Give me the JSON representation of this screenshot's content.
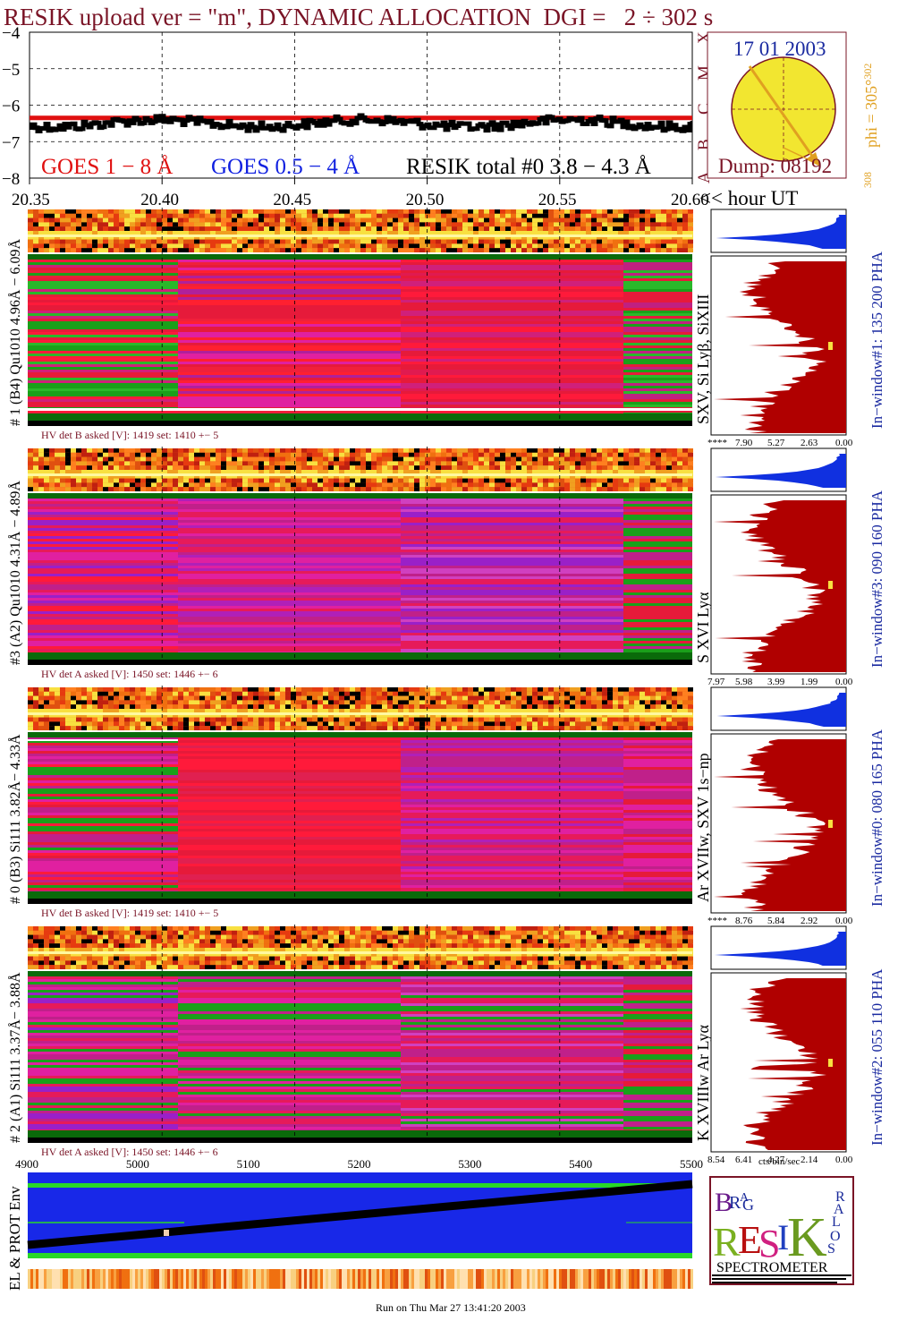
{
  "title": "RESIK upload ver = \"m\", DYNAMIC ALLOCATION  DGI =   2 ÷ 302 s",
  "goes": {
    "y_ticks": [
      "−4",
      "−5",
      "−6",
      "−7",
      "−8"
    ],
    "legend_1_8": "GOES 1 − 8 Å",
    "legend_05_4": "GOES 0.5 − 4 Å",
    "legend_resik": "RESIK total #0  3.8 − 4.3 Å",
    "class_letters": [
      "X",
      "M",
      "C",
      "B",
      "A"
    ]
  },
  "time_axis": {
    "ticks": [
      "20.35",
      "20.40",
      "20.45",
      "20.50",
      "20.55",
      "20.60"
    ],
    "unit_label": "<< hour UT"
  },
  "sun": {
    "date": "17 01 2003",
    "dump": "Dump: 08192",
    "phi": "phi = 305°",
    "phi_sup": "302",
    "phi_bottom": "308"
  },
  "panels": [
    {
      "left_label": "# 1 (B4) Qu1010 4.96Å − 6.09Å",
      "line_label": "SXV, Si Lyβ, SiXIII",
      "hv": "HV det B asked [V]:  1419 set:  1410 +−   5",
      "window": "In−window#1:  135 200 PHA",
      "x_ticks": [
        "****",
        "7.90",
        "5.27",
        "2.63",
        "0.00"
      ]
    },
    {
      "left_label": "#3 (A2) Qu1010  4.31Å − 4.89Å",
      "line_label": "S XVI Lyα",
      "hv": "HV det A asked [V]:  1450 set:  1446 +−   6",
      "window": "In−window#3:  090 160 PHA",
      "x_ticks": [
        "7.97",
        "5.98",
        "3.99",
        "1.99",
        "0.00"
      ]
    },
    {
      "left_label": "# 0 (B3) Si111  3.82Å− 4.33Å",
      "line_label": "Ar XVIIw, SXV 1s−np",
      "hv": "HV det B asked [V]:  1419 set:  1410 +−   5",
      "window": "In−window#0:  080 165 PHA",
      "x_ticks": [
        "****",
        "8.76",
        "5.84",
        "2.92",
        "0.00"
      ]
    },
    {
      "left_label": "# 2 (A1) Si111  3.37Å− 3.88Å",
      "line_label": "K XVIIIw  Ar Lyα",
      "hv": "HV det A asked [V]:  1450 set:  1446 +−   6",
      "window": "In−window#2:  055 110 PHA",
      "x_ticks": [
        "8.54",
        "6.41",
        "4.27",
        "2.14",
        "0.00"
      ]
    }
  ],
  "hist_unit": "cts/bin/sec",
  "env": {
    "label": "EL & PROT Env",
    "x_ticks": [
      "4900",
      "5000",
      "5100",
      "5200",
      "5300",
      "5400",
      "5500"
    ]
  },
  "logo": {
    "letters": [
      "B",
      "R",
      "A",
      "G",
      "R",
      "E",
      "S",
      "I",
      "K",
      "S",
      "O",
      "L",
      "A",
      "R"
    ],
    "caption": "SPECTROMETER"
  },
  "footer": "Run on Thu Mar 27 13:41:20 2003",
  "colors": {
    "maroon": "#7a1426",
    "goes_red": "#e01010",
    "goes_blue": "#1020e0",
    "hist_red": "#b00000",
    "hist_blue": "#1030e0"
  },
  "chart_data": [
    {
      "type": "line",
      "title": "RESIK upload ver = \"m\", DYNAMIC ALLOCATION  DGI =   2 ÷ 302 s",
      "xlabel": "hour UT",
      "ylabel": "",
      "xlim": [
        20.35,
        20.6
      ],
      "ylim": [
        -8,
        -4
      ],
      "grid": true,
      "series": [
        {
          "name": "GOES 1 − 8 Å",
          "x": [
            20.35,
            20.6
          ],
          "y": [
            -6.35,
            -6.35
          ]
        },
        {
          "name": "RESIK total #0  3.8 − 4.3 Å",
          "x": [
            20.35,
            20.6
          ],
          "y": [
            -6.5,
            -6.5
          ]
        }
      ]
    }
  ]
}
